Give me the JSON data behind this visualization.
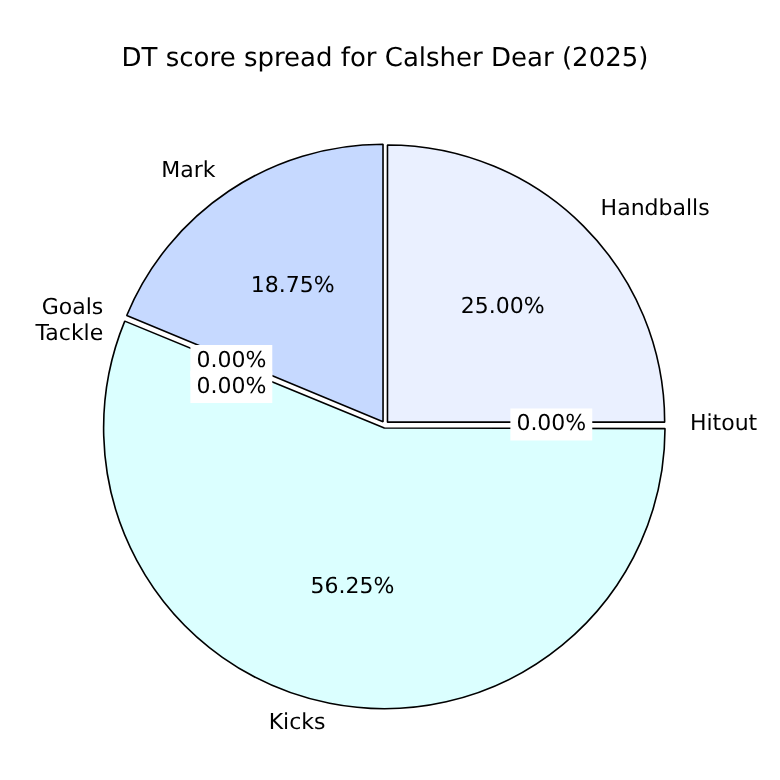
{
  "chart_data": {
    "type": "pie",
    "title": "DT score spread for Calsher Dear (2025)",
    "categories": [
      "Hitout",
      "Kicks",
      "Goals",
      "Tackle",
      "Mark",
      "Handballs"
    ],
    "values": [
      0,
      56.25,
      0,
      0,
      18.75,
      25
    ],
    "colors": [
      "#e6f6ff",
      "#dbffff",
      "#d0f0ff",
      "#cce4ff",
      "#c6d9ff",
      "#eaf0ff"
    ],
    "value_labels": [
      "0.00%",
      "56.25%",
      "0.00%",
      "0.00%",
      "18.75%",
      "25.00%"
    ],
    "legend": false
  }
}
